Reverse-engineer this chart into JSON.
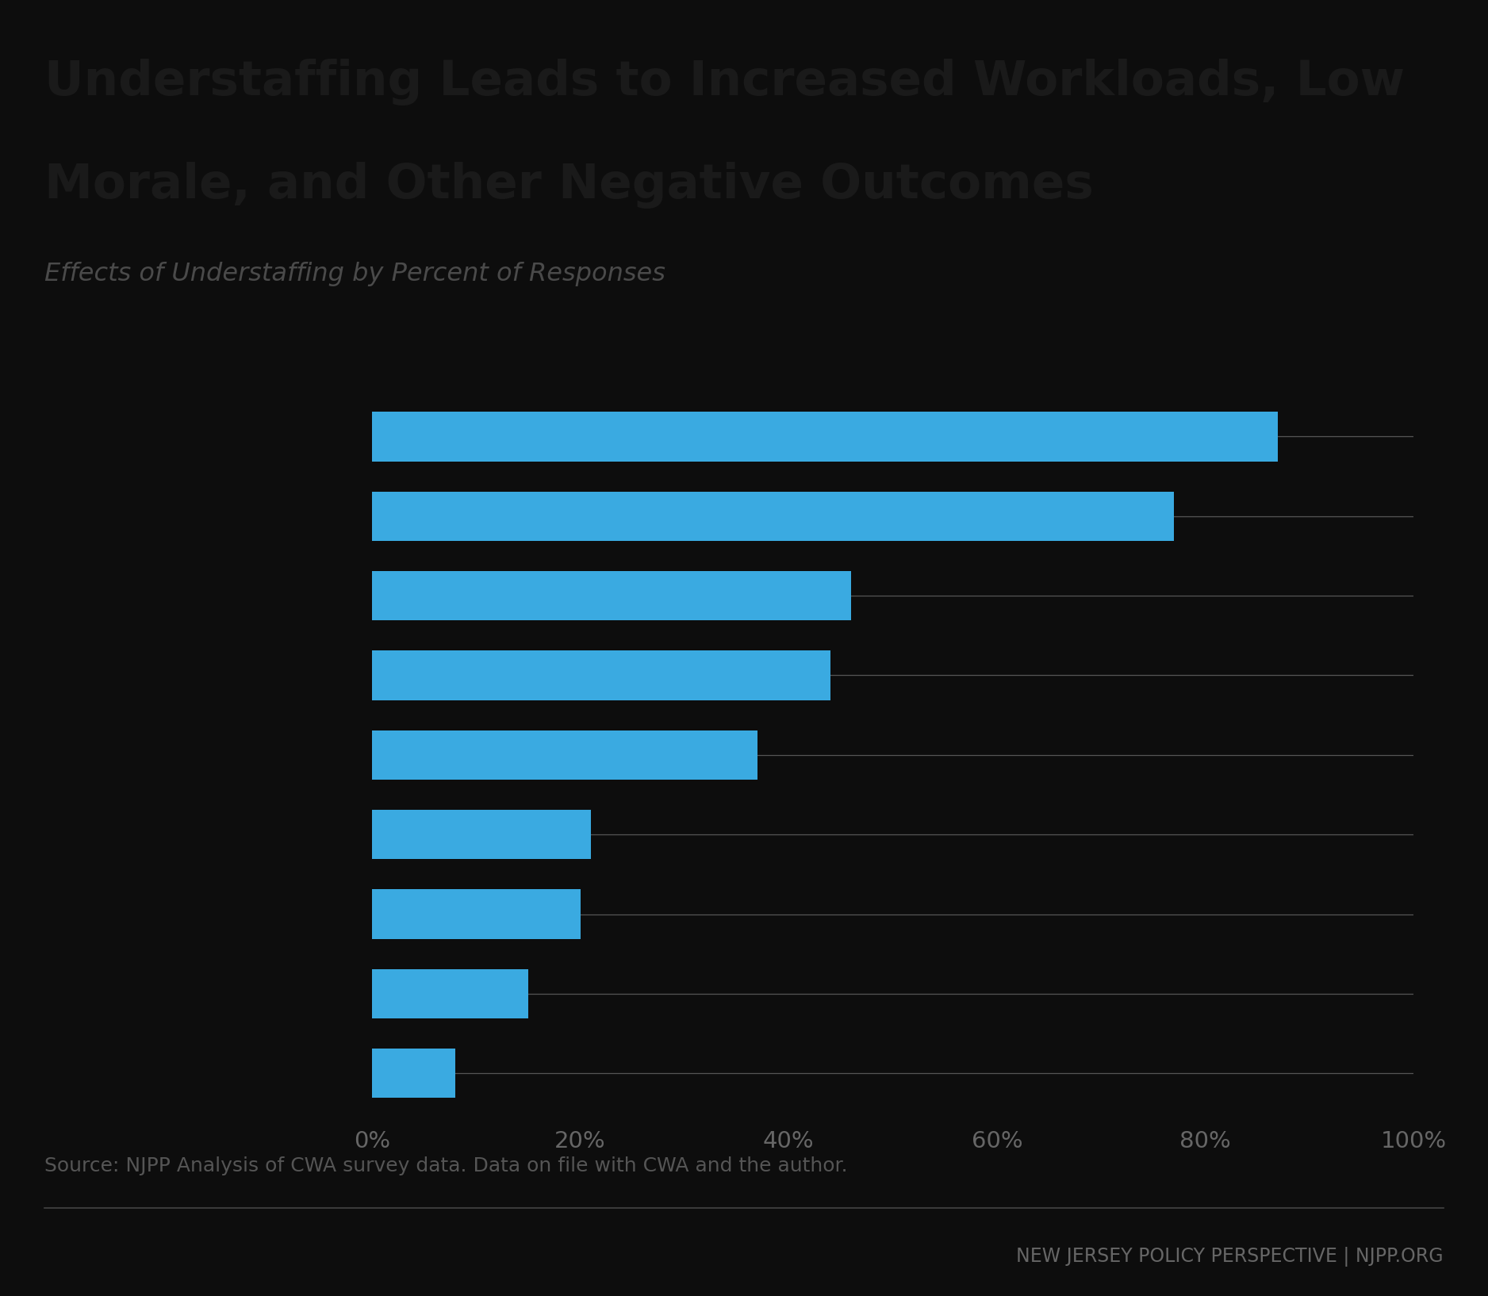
{
  "title_line1": "Understaffing Leads to Increased Workloads, Low",
  "title_line2": "Morale, and Other Negative Outcomes",
  "subtitle": "Effects of Understaffing by Percent of Responses",
  "values": [
    87,
    77,
    46,
    44,
    37,
    21,
    20,
    15,
    8
  ],
  "bar_color": "#3aaae1",
  "background_color": "#0d0d0d",
  "title_color": "#1a1a1a",
  "subtitle_color": "#4a4a4a",
  "tick_color": "#666666",
  "line_color": "#555555",
  "source_text": "Source: NJPP Analysis of CWA survey data. Data on file with CWA and the author.",
  "source_color": "#555555",
  "footer_text": "NEW JERSEY POLICY PERSPECTIVE | NJPP.ORG",
  "footer_color": "#666666",
  "separator_color": "#444444",
  "xlim": [
    0,
    100
  ],
  "xticks": [
    0,
    20,
    40,
    60,
    80,
    100
  ],
  "xtick_labels": [
    "0%",
    "20%",
    "40%",
    "60%",
    "80%",
    "100%"
  ]
}
